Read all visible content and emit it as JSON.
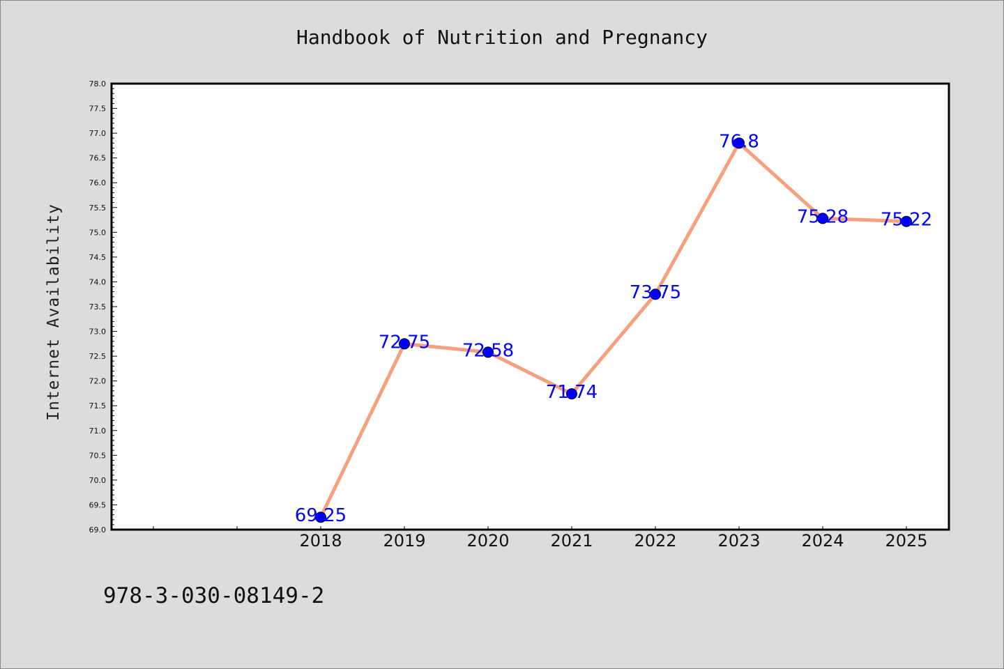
{
  "chart_data": {
    "type": "line",
    "title": "Handbook of Nutrition and Pregnancy",
    "xlabel": "",
    "ylabel": "Internet Availability",
    "x": [
      "2018",
      "2019",
      "2020",
      "2021",
      "2022",
      "2023",
      "2024",
      "2025"
    ],
    "series": [
      {
        "values": [
          69.25,
          72.75,
          72.58,
          71.74,
          73.75,
          76.8,
          75.28,
          75.22
        ],
        "labels": [
          "69.25",
          "72.75",
          "72.58",
          "71.74",
          "73.75",
          "76.8",
          "75.28",
          "75.22"
        ]
      }
    ],
    "ylim": [
      69.0,
      78.0
    ],
    "yticks": [
      "69.0",
      "69.5",
      "70.0",
      "70.5",
      "71.0",
      "71.5",
      "72.0",
      "72.5",
      "73.0",
      "73.5",
      "74.0",
      "74.5",
      "75.0",
      "75.5",
      "76.0",
      "76.5",
      "77.0",
      "77.5",
      "78.0"
    ],
    "grid": false,
    "legend": "none",
    "line_color": "#f5a07f",
    "marker_color": "#0000ff",
    "label_color": "#0000ff"
  },
  "footer": {
    "isbn": "978-3-030-08149-2"
  }
}
